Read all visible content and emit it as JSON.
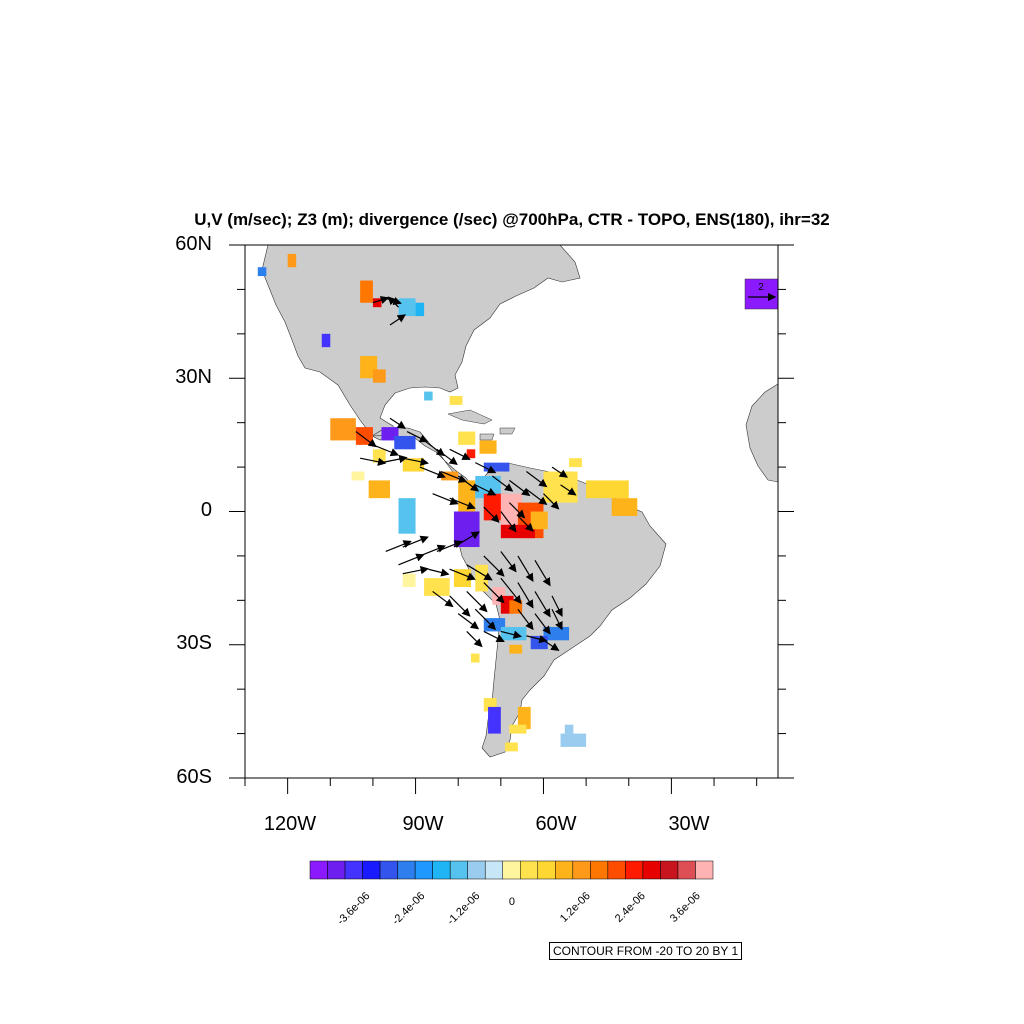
{
  "title": "U,V (m/sec); Z3 (m); divergence (/sec) @700hPa, CTR - TOPO, ENS(180), ihr=32",
  "lat_labels": [
    "60N",
    "30N",
    "0",
    "30S",
    "60S"
  ],
  "lon_labels": [
    "120W",
    "90W",
    "60W",
    "30W"
  ],
  "ref_vector_label": "2",
  "info_label": "CONTOUR FROM -20 TO 20 BY 1",
  "colorbar": {
    "colors": [
      "#8c1aff",
      "#6d1ff0",
      "#4433ff",
      "#1a1aff",
      "#3355ee",
      "#2d7fee",
      "#1f99ff",
      "#1fb5f5",
      "#55c3ee",
      "#99ccee",
      "#c7e7f7",
      "#fff59e",
      "#ffe24d",
      "#ffd733",
      "#ffb31a",
      "#ff991a",
      "#ff7700",
      "#ff4d00",
      "#ff1a00",
      "#e60000",
      "#c8141e",
      "#dd4f55",
      "#ffb3b3"
    ],
    "tick_labels": [
      "-3.6e-06",
      "-2.4e-06",
      "-1.2e-06",
      "0",
      "1.2e-06",
      "2.4e-06",
      "3.6e-06"
    ]
  },
  "map": {
    "lon_range": [
      -130,
      -5
    ],
    "lat_range": [
      -60,
      60
    ],
    "land_color": "#cccccc",
    "divergence_patches": [
      {
        "lon": -127,
        "lat": 55,
        "w": 2,
        "h": 2,
        "c": "#2d7fee"
      },
      {
        "lon": -120,
        "lat": 58,
        "w": 2,
        "h": 3,
        "c": "#ff991a"
      },
      {
        "lon": -103,
        "lat": 52,
        "w": 3,
        "h": 5,
        "c": "#ff7700"
      },
      {
        "lon": -100,
        "lat": 48,
        "w": 2,
        "h": 2,
        "c": "#e60000"
      },
      {
        "lon": -94,
        "lat": 48,
        "w": 4,
        "h": 4,
        "c": "#55c3ee"
      },
      {
        "lon": -90,
        "lat": 47,
        "w": 2,
        "h": 3,
        "c": "#1fb5f5"
      },
      {
        "lon": -112,
        "lat": 40,
        "w": 2,
        "h": 3,
        "c": "#4433ff"
      },
      {
        "lon": -103,
        "lat": 35,
        "w": 4,
        "h": 5,
        "c": "#ffb31a"
      },
      {
        "lon": -100,
        "lat": 32,
        "w": 3,
        "h": 3,
        "c": "#ff991a"
      },
      {
        "lon": -88,
        "lat": 27,
        "w": 2,
        "h": 2,
        "c": "#55c3ee"
      },
      {
        "lon": -110,
        "lat": 21,
        "w": 6,
        "h": 5,
        "c": "#ff991a"
      },
      {
        "lon": -104,
        "lat": 19,
        "w": 4,
        "h": 4,
        "c": "#ff4d00"
      },
      {
        "lon": -98,
        "lat": 19,
        "w": 4,
        "h": 3,
        "c": "#6d1ff0"
      },
      {
        "lon": -95,
        "lat": 17,
        "w": 5,
        "h": 3,
        "c": "#3355ee"
      },
      {
        "lon": -100,
        "lat": 14,
        "w": 3,
        "h": 3,
        "c": "#ffe24d"
      },
      {
        "lon": -93,
        "lat": 12,
        "w": 5,
        "h": 3,
        "c": "#ffd733"
      },
      {
        "lon": -105,
        "lat": 9,
        "w": 3,
        "h": 2,
        "c": "#fff59e"
      },
      {
        "lon": -101,
        "lat": 7,
        "w": 5,
        "h": 4,
        "c": "#ffb31a"
      },
      {
        "lon": -94,
        "lat": 3,
        "w": 4,
        "h": 8,
        "c": "#55c3ee"
      },
      {
        "lon": -80,
        "lat": 18,
        "w": 4,
        "h": 3,
        "c": "#ffe24d"
      },
      {
        "lon": -75,
        "lat": 16,
        "w": 4,
        "h": 3,
        "c": "#ffb31a"
      },
      {
        "lon": -74,
        "lat": 11,
        "w": 6,
        "h": 2,
        "c": "#3355ee"
      },
      {
        "lon": -84,
        "lat": 9,
        "w": 4,
        "h": 2,
        "c": "#ff991a"
      },
      {
        "lon": -80,
        "lat": 7,
        "w": 4,
        "h": 8,
        "c": "#ffb31a"
      },
      {
        "lon": -81,
        "lat": 0,
        "w": 6,
        "h": 8,
        "c": "#6d1ff0"
      },
      {
        "lon": -76,
        "lat": 8,
        "w": 6,
        "h": 5,
        "c": "#55c3ee"
      },
      {
        "lon": -74,
        "lat": 4,
        "w": 5,
        "h": 6,
        "c": "#ff1a00"
      },
      {
        "lon": -70,
        "lat": 4,
        "w": 5,
        "h": 9,
        "c": "#ffb3b3"
      },
      {
        "lon": -66,
        "lat": 2,
        "w": 6,
        "h": 8,
        "c": "#ff4d00"
      },
      {
        "lon": -70,
        "lat": -3,
        "w": 8,
        "h": 3,
        "c": "#e60000"
      },
      {
        "lon": -63,
        "lat": 0,
        "w": 4,
        "h": 4,
        "c": "#ffb31a"
      },
      {
        "lon": -60,
        "lat": 9,
        "w": 8,
        "h": 7,
        "c": "#ffe24d"
      },
      {
        "lon": -50,
        "lat": 7,
        "w": 10,
        "h": 4,
        "c": "#ffd733"
      },
      {
        "lon": -44,
        "lat": 3,
        "w": 6,
        "h": 4,
        "c": "#ffb31a"
      },
      {
        "lon": -54,
        "lat": 12,
        "w": 3,
        "h": 2,
        "c": "#ffe24d"
      },
      {
        "lon": -93,
        "lat": -14,
        "w": 3,
        "h": 3,
        "c": "#fff59e"
      },
      {
        "lon": -88,
        "lat": -15,
        "w": 6,
        "h": 4,
        "c": "#ffe24d"
      },
      {
        "lon": -81,
        "lat": -13,
        "w": 4,
        "h": 4,
        "c": "#ffd733"
      },
      {
        "lon": -76,
        "lat": -12,
        "w": 3,
        "h": 6,
        "c": "#ffe24d"
      },
      {
        "lon": -72,
        "lat": -17,
        "w": 3,
        "h": 4,
        "c": "#ffb3b3"
      },
      {
        "lon": -70,
        "lat": -19,
        "w": 3,
        "h": 4,
        "c": "#e60000"
      },
      {
        "lon": -68,
        "lat": -20,
        "w": 3,
        "h": 3,
        "c": "#ff7700"
      },
      {
        "lon": -74,
        "lat": -24,
        "w": 5,
        "h": 3,
        "c": "#2d7fee"
      },
      {
        "lon": -70,
        "lat": -26,
        "w": 6,
        "h": 3,
        "c": "#55c3ee"
      },
      {
        "lon": -60,
        "lat": -26,
        "w": 6,
        "h": 3,
        "c": "#2d7fee"
      },
      {
        "lon": -63,
        "lat": -28,
        "w": 4,
        "h": 3,
        "c": "#3355ee"
      },
      {
        "lon": -68,
        "lat": -30,
        "w": 3,
        "h": 2,
        "c": "#ffb31a"
      },
      {
        "lon": -77,
        "lat": -32,
        "w": 2,
        "h": 2,
        "c": "#ffe24d"
      },
      {
        "lon": -74,
        "lat": -42,
        "w": 3,
        "h": 3,
        "c": "#ffe24d"
      },
      {
        "lon": -73,
        "lat": -44,
        "w": 3,
        "h": 6,
        "c": "#4433ff"
      },
      {
        "lon": -66,
        "lat": -44,
        "w": 3,
        "h": 5,
        "c": "#ffb31a"
      },
      {
        "lon": -68,
        "lat": -48,
        "w": 4,
        "h": 2,
        "c": "#ffe24d"
      },
      {
        "lon": -55,
        "lat": -48,
        "w": 2,
        "h": 2,
        "c": "#99ccee"
      },
      {
        "lon": -56,
        "lat": -50,
        "w": 6,
        "h": 3,
        "c": "#99ccee"
      },
      {
        "lon": -69,
        "lat": -52,
        "w": 3,
        "h": 2,
        "c": "#ffe24d"
      },
      {
        "lon": -82,
        "lat": 26,
        "w": 3,
        "h": 2,
        "c": "#ffe24d"
      },
      {
        "lon": -78,
        "lat": 14,
        "w": 2,
        "h": 2,
        "c": "#ff1a00"
      }
    ],
    "wind_vectors": [
      {
        "lon": -100,
        "lat": 47,
        "u": 3,
        "v": 1
      },
      {
        "lon": -97,
        "lat": 48,
        "u": 3,
        "v": -1
      },
      {
        "lon": -94,
        "lat": 46,
        "u": -2,
        "v": 2
      },
      {
        "lon": -96,
        "lat": 42,
        "u": 3,
        "v": 2
      },
      {
        "lon": -104,
        "lat": 18,
        "u": 4,
        "v": -3
      },
      {
        "lon": -100,
        "lat": 15,
        "u": 5,
        "v": -2
      },
      {
        "lon": -96,
        "lat": 21,
        "u": 3,
        "v": -2
      },
      {
        "lon": -92,
        "lat": 18,
        "u": 4,
        "v": -2
      },
      {
        "lon": -88,
        "lat": 16,
        "u": 4,
        "v": -3
      },
      {
        "lon": -85,
        "lat": 14,
        "u": 4,
        "v": -3
      },
      {
        "lon": -103,
        "lat": 12,
        "u": 5,
        "v": -1
      },
      {
        "lon": -98,
        "lat": 11,
        "u": 5,
        "v": 1
      },
      {
        "lon": -93,
        "lat": 12,
        "u": 5,
        "v": -1
      },
      {
        "lon": -89,
        "lat": 10,
        "u": 5,
        "v": -2
      },
      {
        "lon": -84,
        "lat": 9,
        "u": 5,
        "v": -2
      },
      {
        "lon": -80,
        "lat": 8,
        "u": 4,
        "v": -3
      },
      {
        "lon": -86,
        "lat": 4,
        "u": 5,
        "v": -2
      },
      {
        "lon": -82,
        "lat": 3,
        "u": 5,
        "v": -2
      },
      {
        "lon": -76,
        "lat": 6,
        "u": 4,
        "v": -2
      },
      {
        "lon": -72,
        "lat": 8,
        "u": 4,
        "v": -3
      },
      {
        "lon": -68,
        "lat": 7,
        "u": 4,
        "v": -3
      },
      {
        "lon": -64,
        "lat": 5,
        "u": 4,
        "v": -3
      },
      {
        "lon": -60,
        "lat": 4,
        "u": 3,
        "v": -3
      },
      {
        "lon": -74,
        "lat": 1,
        "u": 3,
        "v": -3
      },
      {
        "lon": -70,
        "lat": 0,
        "u": 3,
        "v": -4
      },
      {
        "lon": -66,
        "lat": -1,
        "u": 3,
        "v": -3
      },
      {
        "lon": -97,
        "lat": -9,
        "u": 5,
        "v": 2
      },
      {
        "lon": -93,
        "lat": -8,
        "u": 5,
        "v": 2
      },
      {
        "lon": -89,
        "lat": -10,
        "u": 5,
        "v": 2
      },
      {
        "lon": -85,
        "lat": -9,
        "u": 5,
        "v": 2
      },
      {
        "lon": -81,
        "lat": -8,
        "u": 5,
        "v": 3
      },
      {
        "lon": -93,
        "lat": -14,
        "u": 5,
        "v": 1
      },
      {
        "lon": -87,
        "lat": -13,
        "u": 4,
        "v": -1
      },
      {
        "lon": -82,
        "lat": -13,
        "u": 5,
        "v": -2
      },
      {
        "lon": -78,
        "lat": -12,
        "u": 5,
        "v": -3
      },
      {
        "lon": -74,
        "lat": -10,
        "u": 4,
        "v": -4
      },
      {
        "lon": -70,
        "lat": -9,
        "u": 3,
        "v": -4
      },
      {
        "lon": -66,
        "lat": -10,
        "u": 3,
        "v": -5
      },
      {
        "lon": -62,
        "lat": -11,
        "u": 3,
        "v": -5
      },
      {
        "lon": -86,
        "lat": -18,
        "u": 4,
        "v": -3
      },
      {
        "lon": -82,
        "lat": -19,
        "u": 4,
        "v": -4
      },
      {
        "lon": -78,
        "lat": -18,
        "u": 4,
        "v": -4
      },
      {
        "lon": -74,
        "lat": -16,
        "u": 4,
        "v": -4
      },
      {
        "lon": -70,
        "lat": -15,
        "u": 4,
        "v": -5
      },
      {
        "lon": -66,
        "lat": -16,
        "u": 3,
        "v": -5
      },
      {
        "lon": -62,
        "lat": -18,
        "u": 3,
        "v": -5
      },
      {
        "lon": -58,
        "lat": -19,
        "u": 2,
        "v": -4
      },
      {
        "lon": -80,
        "lat": -23,
        "u": 4,
        "v": -3
      },
      {
        "lon": -76,
        "lat": -22,
        "u": 4,
        "v": -4
      },
      {
        "lon": -66,
        "lat": -22,
        "u": 3,
        "v": -4
      },
      {
        "lon": -62,
        "lat": -23,
        "u": 3,
        "v": -4
      },
      {
        "lon": -58,
        "lat": -22,
        "u": 2,
        "v": -4
      },
      {
        "lon": -74,
        "lat": -27,
        "u": 4,
        "v": -2
      },
      {
        "lon": -70,
        "lat": -27,
        "u": 4,
        "v": -1
      },
      {
        "lon": -64,
        "lat": -28,
        "u": 4,
        "v": -1
      },
      {
        "lon": -60,
        "lat": -29,
        "u": 3,
        "v": -2
      },
      {
        "lon": -78,
        "lat": -27,
        "u": 3,
        "v": -3
      },
      {
        "lon": -76,
        "lat": 11,
        "u": 4,
        "v": -2
      },
      {
        "lon": -82,
        "lat": 14,
        "u": 4,
        "v": -2
      },
      {
        "lon": -68,
        "lat": 2,
        "u": 3,
        "v": -3
      },
      {
        "lon": -64,
        "lat": 9,
        "u": 4,
        "v": -3
      },
      {
        "lon": -58,
        "lat": 10,
        "u": 3,
        "v": -2
      },
      {
        "lon": -56,
        "lat": 6,
        "u": 3,
        "v": -2
      },
      {
        "lon": -94,
        "lat": -12,
        "u": 5,
        "v": 2
      }
    ]
  }
}
